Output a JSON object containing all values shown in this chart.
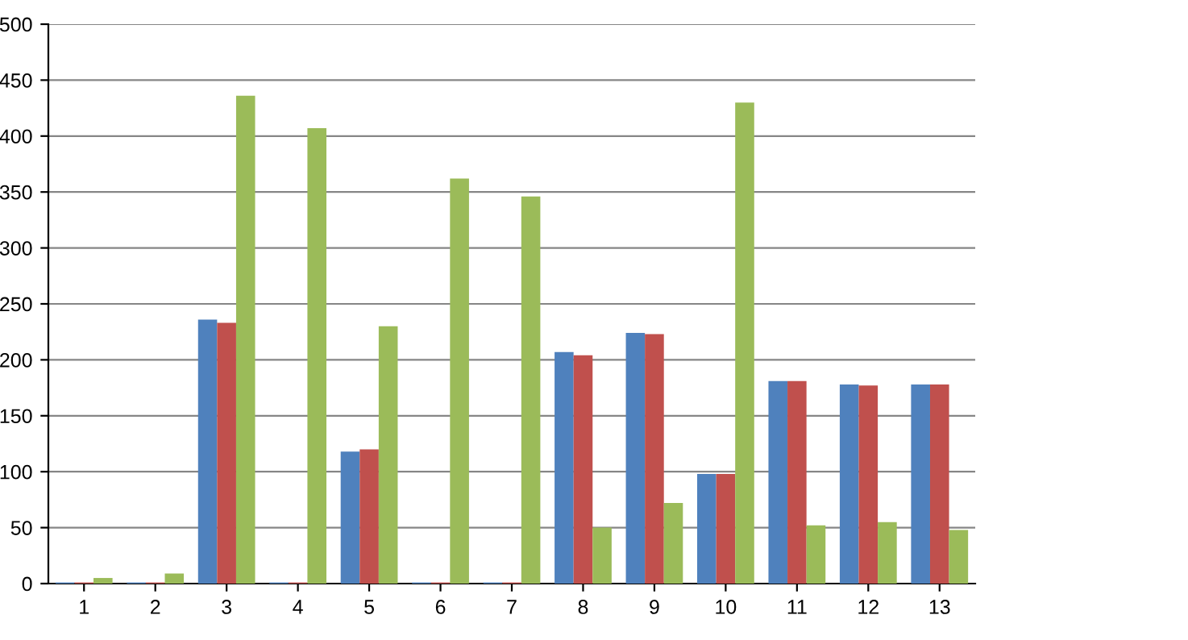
{
  "chart_data": {
    "type": "bar",
    "categories": [
      "1",
      "2",
      "3",
      "4",
      "5",
      "6",
      "7",
      "8",
      "9",
      "10",
      "11",
      "12",
      "13"
    ],
    "series": [
      {
        "color": "#4f81bd",
        "values": [
          1,
          1,
          236,
          1,
          118,
          1,
          1,
          207,
          224,
          98,
          181,
          178,
          178
        ]
      },
      {
        "color": "#c0504d",
        "values": [
          1,
          1,
          233,
          1,
          120,
          1,
          1,
          204,
          223,
          98,
          181,
          177,
          178
        ]
      },
      {
        "color": "#9bbb59",
        "values": [
          5,
          9,
          436,
          407,
          230,
          362,
          346,
          50,
          72,
          430,
          52,
          55,
          48
        ]
      }
    ],
    "ylim": [
      0,
      500
    ],
    "yticks": [
      0,
      50,
      100,
      150,
      200,
      250,
      300,
      350,
      400,
      450,
      500
    ],
    "grid": "y"
  }
}
